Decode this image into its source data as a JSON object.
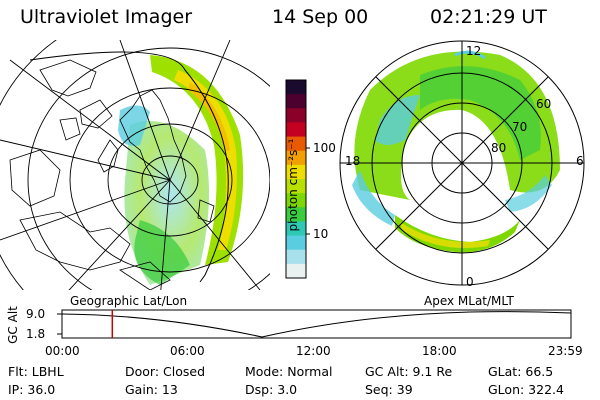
{
  "header": {
    "instrument": "Ultraviolet Imager",
    "date": "14 Sep 00",
    "time": "02:21:29 UT"
  },
  "colorbar": {
    "unit_label": "photon cm⁻²s⁻¹",
    "ticks": [
      "100",
      "10"
    ],
    "colors": [
      "#1a0a2e",
      "#4b0030",
      "#8a0028",
      "#c40020",
      "#e85a00",
      "#f2a000",
      "#eede00",
      "#b8e000",
      "#7ed800",
      "#3ccc40",
      "#2ec8b4",
      "#5acde0",
      "#a8e0ec",
      "#e8f0f0"
    ]
  },
  "polar_plot": {
    "mlt_labels": {
      "top": "12",
      "bottom": "0",
      "left": "18",
      "right": "6"
    },
    "lat_labels": [
      "60",
      "70",
      "80"
    ]
  },
  "projection_labels": {
    "left": "Geographic Lat/Lon",
    "right": "Apex  MLat/MLT"
  },
  "altitude_plot": {
    "y_axis_label": "GC Alt",
    "y_ticks": [
      "9.0",
      "1.8"
    ],
    "x_ticks": [
      "00:00",
      "06:00",
      "12:00",
      "18:00",
      "23:59"
    ],
    "current_time_fraction": 0.0988,
    "marker_color": "#cc0000"
  },
  "info": {
    "row1": [
      "Flt: LBHL",
      "Door: Closed",
      "Mode: Normal",
      "GC Alt: 9.1 Re",
      "GLat:  66.5"
    ],
    "row2": [
      "IP: 36.0",
      "Gain: 13",
      "Dsp:   3.0",
      "Seq: 39",
      "GLon: 322.4"
    ]
  }
}
